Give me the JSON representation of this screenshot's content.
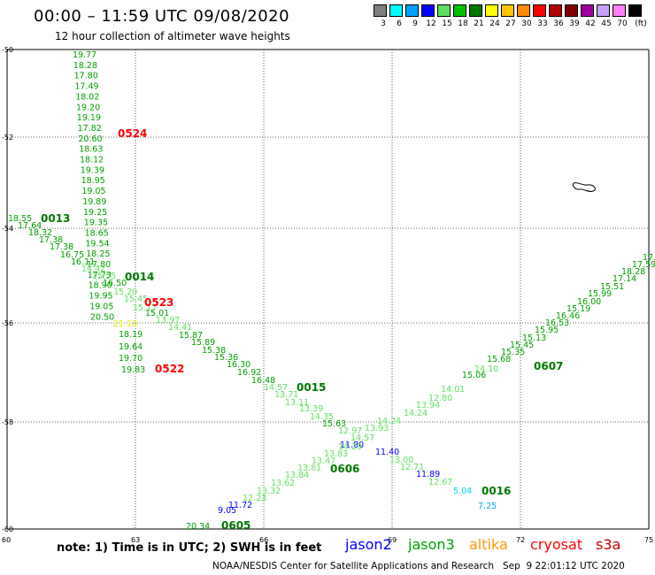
{
  "header": {
    "title": "00:00 – 11:59 UTC 09/08/2020",
    "subtitle": "12 hour collection of altimeter wave heights"
  },
  "legend": {
    "unit": "(ft)",
    "bins": [
      {
        "label": "3",
        "color": "#808080"
      },
      {
        "label": "6",
        "color": "#00ffff"
      },
      {
        "label": "9",
        "color": "#00a0ff"
      },
      {
        "label": "12",
        "color": "#0000ff"
      },
      {
        "label": "15",
        "color": "#60e060"
      },
      {
        "label": "18",
        "color": "#00c000"
      },
      {
        "label": "21",
        "color": "#007800"
      },
      {
        "label": "24",
        "color": "#ffff00"
      },
      {
        "label": "27",
        "color": "#ffc800"
      },
      {
        "label": "30",
        "color": "#ff8c00"
      },
      {
        "label": "33",
        "color": "#ff0000"
      },
      {
        "label": "36",
        "color": "#b40000"
      },
      {
        "label": "39",
        "color": "#800000"
      },
      {
        "label": "42",
        "color": "#a000a0"
      },
      {
        "label": "45",
        "color": "#c8a0ff"
      },
      {
        "label": "70",
        "color": "#ff80ff"
      },
      {
        "label": "",
        "color": "#000000"
      }
    ]
  },
  "axes": {
    "y_ticks": [
      "-50",
      "-52",
      "-54",
      "-56",
      "-58",
      "-60"
    ],
    "x_ticks": [
      "60",
      "63",
      "66",
      "69",
      "72",
      "75"
    ]
  },
  "tracks": [
    {
      "id": "cryosat-0524",
      "time": "0524",
      "time_color": "#ff0000",
      "points": [
        {
          "v": "19.77",
          "c": "#00a000"
        },
        {
          "v": "18.28",
          "c": "#00a000"
        },
        {
          "v": "17.80",
          "c": "#00a000"
        },
        {
          "v": "17.49",
          "c": "#00a000"
        },
        {
          "v": "18.02",
          "c": "#00a000"
        },
        {
          "v": "19.20",
          "c": "#00a000"
        },
        {
          "v": "19.19",
          "c": "#00a000"
        },
        {
          "v": "17.82",
          "c": "#00a000"
        },
        {
          "v": "20.60",
          "c": "#00a000"
        },
        {
          "v": "18.63",
          "c": "#00a000"
        },
        {
          "v": "18.12",
          "c": "#00a000"
        },
        {
          "v": "19.39",
          "c": "#00a000"
        },
        {
          "v": "18.95",
          "c": "#00a000"
        },
        {
          "v": "19.05",
          "c": "#00a000"
        },
        {
          "v": "19.89",
          "c": "#00a000"
        },
        {
          "v": "19.25",
          "c": "#00a000"
        },
        {
          "v": "19.35",
          "c": "#00a000"
        },
        {
          "v": "18.65",
          "c": "#00a000"
        },
        {
          "v": "19.54",
          "c": "#00a000"
        },
        {
          "v": "18.25",
          "c": "#00a000"
        },
        {
          "v": "17.80",
          "c": "#00a000"
        },
        {
          "v": "17.73",
          "c": "#00a000"
        },
        {
          "v": "18.90",
          "c": "#00a000"
        },
        {
          "v": "19.95",
          "c": "#00a000"
        },
        {
          "v": "19.05",
          "c": "#00a000"
        },
        {
          "v": "20.50",
          "c": "#00a000"
        },
        {
          "v": "21.10",
          "c": "#e8e800"
        },
        {
          "v": "18.19",
          "c": "#00a000"
        },
        {
          "v": "19.64",
          "c": "#00a000"
        },
        {
          "v": "19.70",
          "c": "#00a000"
        },
        {
          "v": "19.83",
          "c": "#00a000"
        }
      ]
    },
    {
      "id": "jason3-0013",
      "time": "0013",
      "time_color": "#007800",
      "points": [
        {
          "v": "18.55",
          "c": "#00a000"
        },
        {
          "v": "17.64",
          "c": "#00a000"
        },
        {
          "v": "18.32",
          "c": "#00a000"
        },
        {
          "v": "17.38",
          "c": "#00a000"
        },
        {
          "v": "17.38",
          "c": "#00a000"
        },
        {
          "v": "16.75",
          "c": "#00a000"
        },
        {
          "v": "16.11",
          "c": "#00a000"
        },
        {
          "v": "14.42",
          "c": "#60e060"
        },
        {
          "v": "15.55",
          "c": "#60e060"
        },
        {
          "v": "16.50",
          "c": "#00a000"
        },
        {
          "v": "15.20",
          "c": "#60e060"
        },
        {
          "v": "15.45",
          "c": "#60e060"
        },
        {
          "v": "15.17",
          "c": "#60e060"
        },
        {
          "v": "15.01",
          "c": "#00a000"
        },
        {
          "v": "13.97",
          "c": "#60e060"
        },
        {
          "v": "14.41",
          "c": "#60e060"
        },
        {
          "v": "15.87",
          "c": "#00a000"
        },
        {
          "v": "15.89",
          "c": "#00a000"
        },
        {
          "v": "15.38",
          "c": "#00a000"
        },
        {
          "v": "15.36",
          "c": "#00a000"
        },
        {
          "v": "16.30",
          "c": "#00a000"
        },
        {
          "v": "16.92",
          "c": "#00a000"
        },
        {
          "v": "16.48",
          "c": "#00a000"
        },
        {
          "v": "14.57",
          "c": "#60e060"
        },
        {
          "v": "13.71",
          "c": "#60e060"
        },
        {
          "v": "13.11",
          "c": "#60e060"
        },
        {
          "v": "13.39",
          "c": "#60e060"
        },
        {
          "v": "14.35",
          "c": "#60e060"
        },
        {
          "v": "15.63",
          "c": "#00a000"
        },
        {
          "v": "12.97",
          "c": "#60e060"
        },
        {
          "v": "14.57",
          "c": "#60e060"
        },
        {
          "v": "11.80",
          "c": "#0000ff"
        },
        {
          "v": "11.40",
          "c": "#0000ff"
        },
        {
          "v": "13.00",
          "c": "#60e060"
        },
        {
          "v": "12.71",
          "c": "#60e060"
        },
        {
          "v": "11.89",
          "c": "#0000ff"
        },
        {
          "v": "12.67",
          "c": "#60e060"
        },
        {
          "v": "5.04",
          "c": "#00d0ff"
        },
        {
          "v": "7.25",
          "c": "#00a0ff"
        }
      ]
    },
    {
      "id": "jason3-0014",
      "time": "0014",
      "time_color": "#007800",
      "points": []
    },
    {
      "id": "jason3-0015",
      "time": "0015",
      "time_color": "#007800",
      "points": []
    },
    {
      "id": "jason3-0016",
      "time": "0016",
      "time_color": "#007800",
      "points": []
    },
    {
      "id": "cryosat-0523",
      "time": "0523",
      "time_color": "#ff0000",
      "points": []
    },
    {
      "id": "cryosat-0522",
      "time": "0522",
      "time_color": "#ff0000",
      "points": []
    },
    {
      "id": "jason3-0605",
      "time": "0605",
      "time_color": "#007800",
      "points": [
        {
          "v": "20.34",
          "c": "#00a000"
        },
        {
          "v": "9.05",
          "c": "#0000ff"
        },
        {
          "v": "11.72",
          "c": "#0000ff"
        },
        {
          "v": "12.23",
          "c": "#60e060"
        },
        {
          "v": "13.32",
          "c": "#60e060"
        },
        {
          "v": "13.62",
          "c": "#60e060"
        },
        {
          "v": "13.84",
          "c": "#60e060"
        },
        {
          "v": "13.81",
          "c": "#60e060"
        },
        {
          "v": "13.47",
          "c": "#60e060"
        },
        {
          "v": "13.83",
          "c": "#60e060"
        },
        {
          "v": "14.29",
          "c": "#60e060"
        },
        {
          "v": "13.93",
          "c": "#60e060"
        },
        {
          "v": "14.24",
          "c": "#60e060"
        },
        {
          "v": "14.24",
          "c": "#60e060"
        },
        {
          "v": "13.94",
          "c": "#60e060"
        },
        {
          "v": "12.80",
          "c": "#60e060"
        },
        {
          "v": "14.01",
          "c": "#60e060"
        },
        {
          "v": "15.06",
          "c": "#00a000"
        },
        {
          "v": "14.10",
          "c": "#60e060"
        },
        {
          "v": "15.68",
          "c": "#00a000"
        },
        {
          "v": "15.35",
          "c": "#00a000"
        },
        {
          "v": "15.45",
          "c": "#00a000"
        },
        {
          "v": "15.13",
          "c": "#00a000"
        },
        {
          "v": "15.95",
          "c": "#00a000"
        },
        {
          "v": "16.53",
          "c": "#00a000"
        },
        {
          "v": "16.46",
          "c": "#00a000"
        },
        {
          "v": "15.19",
          "c": "#00a000"
        },
        {
          "v": "16.00",
          "c": "#00a000"
        },
        {
          "v": "15.99",
          "c": "#00a000"
        },
        {
          "v": "15.51",
          "c": "#00a000"
        },
        {
          "v": "17.14",
          "c": "#00a000"
        },
        {
          "v": "18.28",
          "c": "#00a000"
        },
        {
          "v": "17.59",
          "c": "#00a000"
        },
        {
          "v": "17.",
          "c": "#00a000"
        }
      ]
    },
    {
      "id": "jason3-0606",
      "time": "0606",
      "time_color": "#007800",
      "points": []
    },
    {
      "id": "jason3-0607",
      "time": "0607",
      "time_color": "#007800",
      "points": []
    }
  ],
  "footer": {
    "note": "note: 1) Time is in UTC; 2) SWH is in feet",
    "satellites": [
      {
        "name": "jason2",
        "color": "#0000ff"
      },
      {
        "name": "jason3",
        "color": "#00a000"
      },
      {
        "name": "altika",
        "color": "#ff9900"
      },
      {
        "name": "cryosat",
        "color": "#ff0000"
      },
      {
        "name": "s3a",
        "color": "#c00000"
      }
    ],
    "credit": "NOAA/NESDIS Center for Satellite Applications and Research   Sep  9 22:01:12 UTC 2020"
  }
}
